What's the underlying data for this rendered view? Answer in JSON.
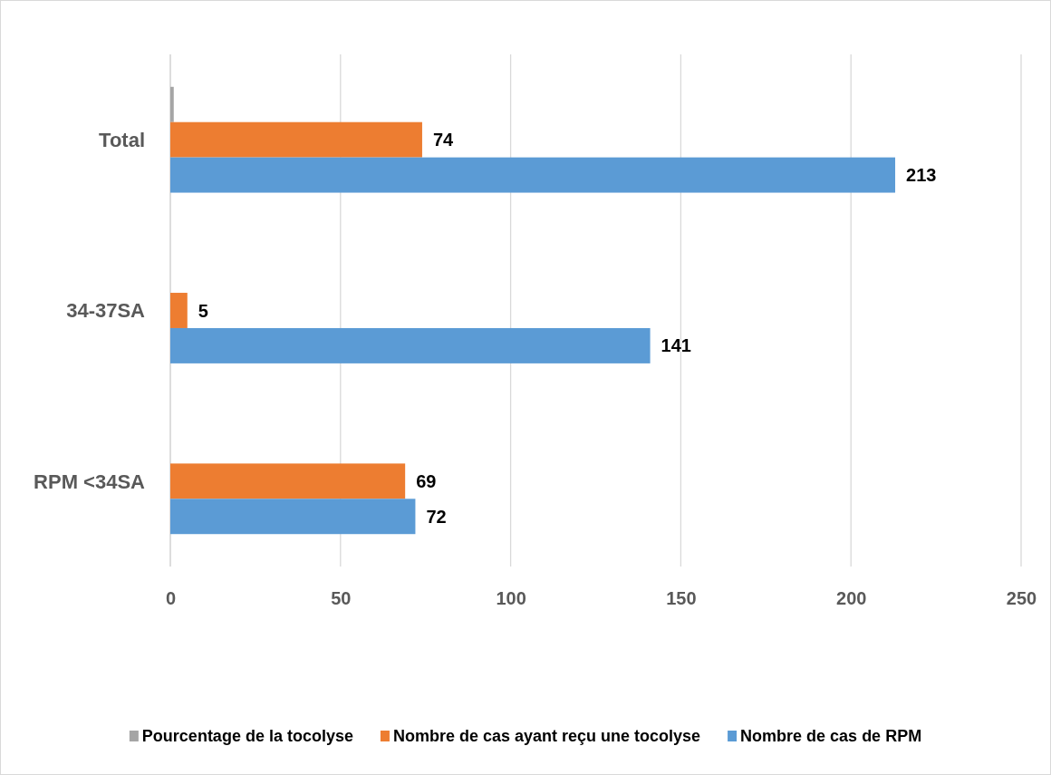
{
  "chart_data": {
    "type": "bar",
    "orientation": "horizontal",
    "categories": [
      "Total",
      "34-37SA",
      "RPM <34SA"
    ],
    "series": [
      {
        "name": "Pourcentage de la tocolyse",
        "color": "#a5a5a5",
        "values": [
          1,
          null,
          null
        ],
        "value_labels": [
          null,
          null,
          null
        ]
      },
      {
        "name": "Nombre de cas ayant reçu une tocolyse",
        "color": "#ed7d31",
        "values": [
          74,
          5,
          69
        ],
        "value_labels": [
          "74",
          "5",
          "69"
        ]
      },
      {
        "name": "Nombre de cas de RPM",
        "color": "#5b9bd5",
        "values": [
          213,
          141,
          72
        ],
        "value_labels": [
          "213",
          "141",
          "72"
        ]
      }
    ],
    "xlim": [
      0,
      250
    ],
    "xticks": [
      0,
      50,
      100,
      150,
      200,
      250
    ],
    "grid": "x",
    "legend": "bottom"
  }
}
